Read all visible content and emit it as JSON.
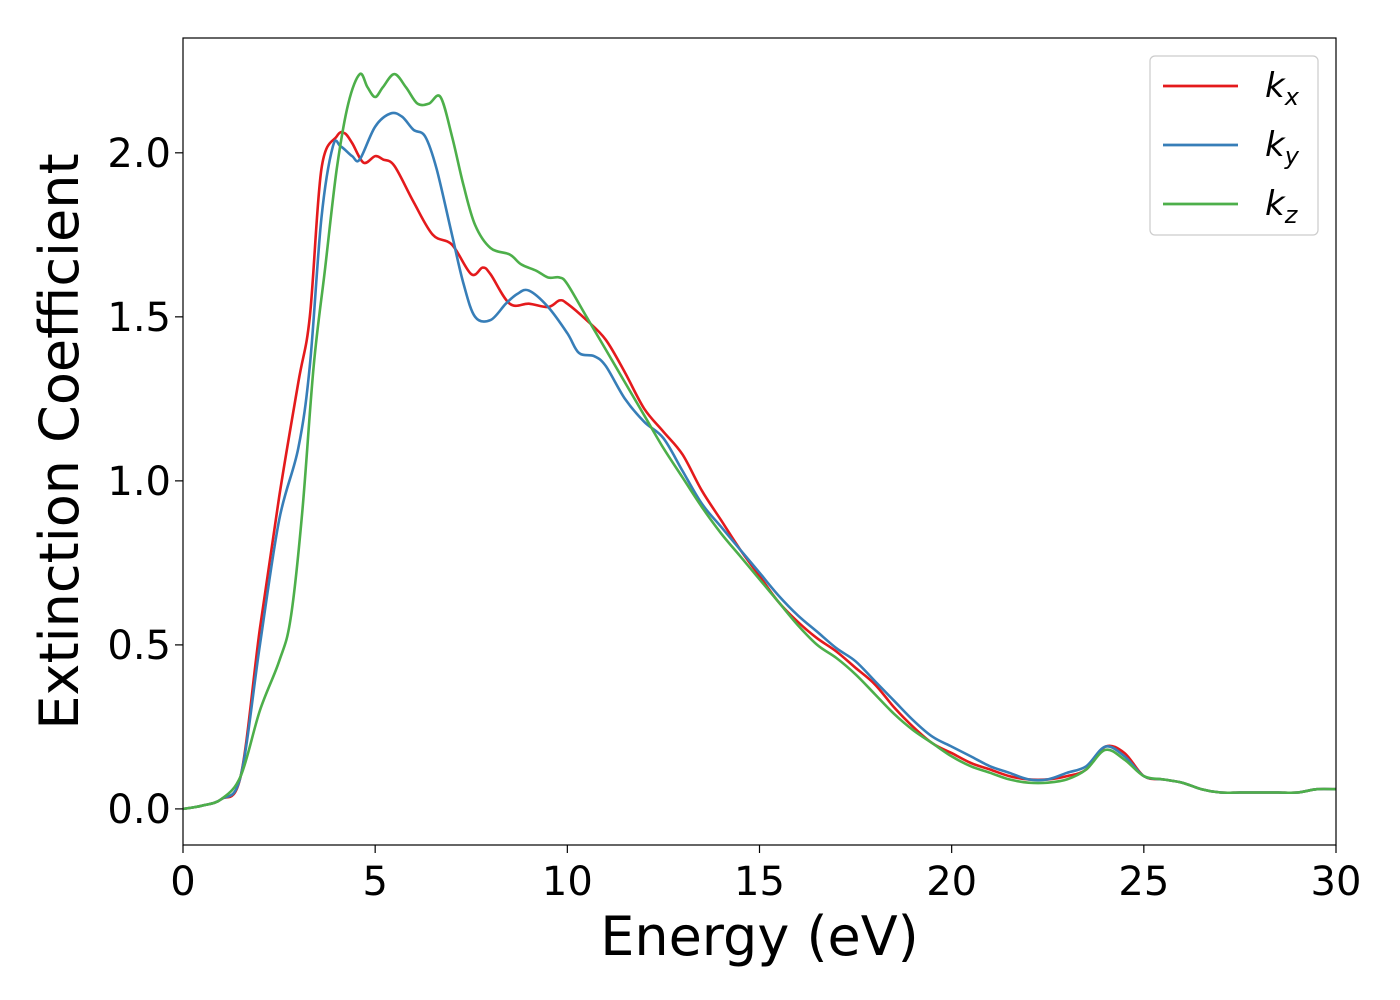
{
  "chart_data": {
    "type": "line",
    "xlabel": "Energy (eV)",
    "ylabel": "Extinction Coefficient",
    "xlim": [
      0,
      30
    ],
    "ylim": [
      -0.11,
      2.35
    ],
    "xticks": [
      0,
      5,
      10,
      15,
      20,
      25,
      30
    ],
    "xtick_labels": [
      "0",
      "5",
      "10",
      "15",
      "20",
      "25",
      "30"
    ],
    "yticks": [
      0.0,
      0.5,
      1.0,
      1.5,
      2.0
    ],
    "ytick_labels": [
      "0.0",
      "0.5",
      "1.0",
      "1.5",
      "2.0"
    ],
    "grid": false,
    "legend_position": "top-right",
    "series": [
      {
        "name": "k",
        "subscript": "x",
        "color": "#e41a1c",
        "x": [
          0,
          0.5,
          1.0,
          1.5,
          2.0,
          2.5,
          3.0,
          3.3,
          3.6,
          4.0,
          4.2,
          4.4,
          4.7,
          5.0,
          5.2,
          5.5,
          6.0,
          6.5,
          7.0,
          7.5,
          7.8,
          8.0,
          8.5,
          9.0,
          9.5,
          9.8,
          10.0,
          10.5,
          11.0,
          11.5,
          12.0,
          12.5,
          13.0,
          13.5,
          14.0,
          14.5,
          15.0,
          15.5,
          16.0,
          16.5,
          17.0,
          17.5,
          18.0,
          18.5,
          19.0,
          19.5,
          20.0,
          20.5,
          21.0,
          21.5,
          22.0,
          22.5,
          23.0,
          23.5,
          24.0,
          24.5,
          25.0,
          25.5,
          26.0,
          26.5,
          27.0,
          27.5,
          28.0,
          28.5,
          29.0,
          29.5,
          30.0
        ],
        "y": [
          0.0,
          0.01,
          0.03,
          0.1,
          0.55,
          0.95,
          1.3,
          1.5,
          1.95,
          2.05,
          2.06,
          2.03,
          1.97,
          1.99,
          1.98,
          1.96,
          1.85,
          1.75,
          1.72,
          1.63,
          1.65,
          1.63,
          1.54,
          1.54,
          1.53,
          1.55,
          1.54,
          1.49,
          1.43,
          1.33,
          1.22,
          1.15,
          1.08,
          0.97,
          0.88,
          0.79,
          0.71,
          0.63,
          0.57,
          0.52,
          0.48,
          0.43,
          0.38,
          0.31,
          0.25,
          0.2,
          0.17,
          0.14,
          0.12,
          0.1,
          0.09,
          0.09,
          0.1,
          0.12,
          0.19,
          0.17,
          0.1,
          0.09,
          0.08,
          0.06,
          0.05,
          0.05,
          0.05,
          0.05,
          0.05,
          0.06,
          0.06
        ]
      },
      {
        "name": "k",
        "subscript": "y",
        "color": "#377eb8",
        "x": [
          0,
          0.5,
          1.0,
          1.5,
          2.0,
          2.5,
          3.0,
          3.3,
          3.6,
          3.9,
          4.1,
          4.4,
          4.6,
          5.0,
          5.4,
          5.7,
          6.0,
          6.3,
          6.6,
          7.0,
          7.3,
          7.6,
          8.0,
          8.4,
          8.7,
          9.0,
          9.5,
          10.0,
          10.3,
          10.7,
          11.0,
          11.5,
          12.0,
          12.5,
          13.0,
          13.5,
          14.0,
          14.5,
          15.0,
          15.5,
          16.0,
          16.5,
          17.0,
          17.5,
          18.0,
          18.5,
          19.0,
          19.5,
          20.0,
          20.5,
          21.0,
          21.5,
          22.0,
          22.5,
          23.0,
          23.5,
          24.0,
          24.5,
          25.0,
          25.5,
          26.0,
          26.5,
          27.0,
          27.5,
          28.0,
          28.5,
          29.0,
          29.5,
          30.0
        ],
        "y": [
          0.0,
          0.01,
          0.03,
          0.1,
          0.5,
          0.88,
          1.1,
          1.35,
          1.8,
          2.02,
          2.02,
          1.99,
          1.98,
          2.08,
          2.12,
          2.11,
          2.07,
          2.05,
          1.95,
          1.75,
          1.6,
          1.5,
          1.49,
          1.54,
          1.57,
          1.58,
          1.53,
          1.45,
          1.39,
          1.38,
          1.35,
          1.25,
          1.18,
          1.13,
          1.03,
          0.93,
          0.86,
          0.79,
          0.72,
          0.65,
          0.59,
          0.54,
          0.49,
          0.45,
          0.39,
          0.33,
          0.27,
          0.22,
          0.19,
          0.16,
          0.13,
          0.11,
          0.09,
          0.09,
          0.11,
          0.13,
          0.19,
          0.16,
          0.1,
          0.09,
          0.08,
          0.06,
          0.05,
          0.05,
          0.05,
          0.05,
          0.05,
          0.06,
          0.06
        ]
      },
      {
        "name": "k",
        "subscript": "z",
        "color": "#4daf4a",
        "x": [
          0,
          0.5,
          1.0,
          1.5,
          2.0,
          2.5,
          2.8,
          3.1,
          3.4,
          3.7,
          4.0,
          4.3,
          4.6,
          4.8,
          5.0,
          5.2,
          5.5,
          5.8,
          6.1,
          6.4,
          6.7,
          7.0,
          7.3,
          7.6,
          8.0,
          8.5,
          8.8,
          9.2,
          9.5,
          9.8,
          10.0,
          10.5,
          11.0,
          11.5,
          12.0,
          12.5,
          13.0,
          13.5,
          14.0,
          14.5,
          15.0,
          15.5,
          16.0,
          16.5,
          17.0,
          17.5,
          18.0,
          18.5,
          19.0,
          19.5,
          20.0,
          20.5,
          21.0,
          21.5,
          22.0,
          22.5,
          23.0,
          23.5,
          24.0,
          24.5,
          25.0,
          25.5,
          26.0,
          26.5,
          27.0,
          27.5,
          28.0,
          28.5,
          29.0,
          29.5,
          30.0
        ],
        "y": [
          0.0,
          0.01,
          0.03,
          0.1,
          0.3,
          0.45,
          0.58,
          0.9,
          1.35,
          1.65,
          1.95,
          2.15,
          2.24,
          2.2,
          2.17,
          2.2,
          2.24,
          2.2,
          2.15,
          2.15,
          2.17,
          2.05,
          1.9,
          1.78,
          1.71,
          1.69,
          1.66,
          1.64,
          1.62,
          1.62,
          1.6,
          1.5,
          1.4,
          1.3,
          1.2,
          1.1,
          1.01,
          0.92,
          0.84,
          0.77,
          0.7,
          0.63,
          0.56,
          0.5,
          0.46,
          0.41,
          0.35,
          0.29,
          0.24,
          0.2,
          0.16,
          0.13,
          0.11,
          0.09,
          0.08,
          0.08,
          0.09,
          0.12,
          0.18,
          0.15,
          0.1,
          0.09,
          0.08,
          0.06,
          0.05,
          0.05,
          0.05,
          0.05,
          0.05,
          0.06,
          0.06
        ]
      }
    ]
  }
}
